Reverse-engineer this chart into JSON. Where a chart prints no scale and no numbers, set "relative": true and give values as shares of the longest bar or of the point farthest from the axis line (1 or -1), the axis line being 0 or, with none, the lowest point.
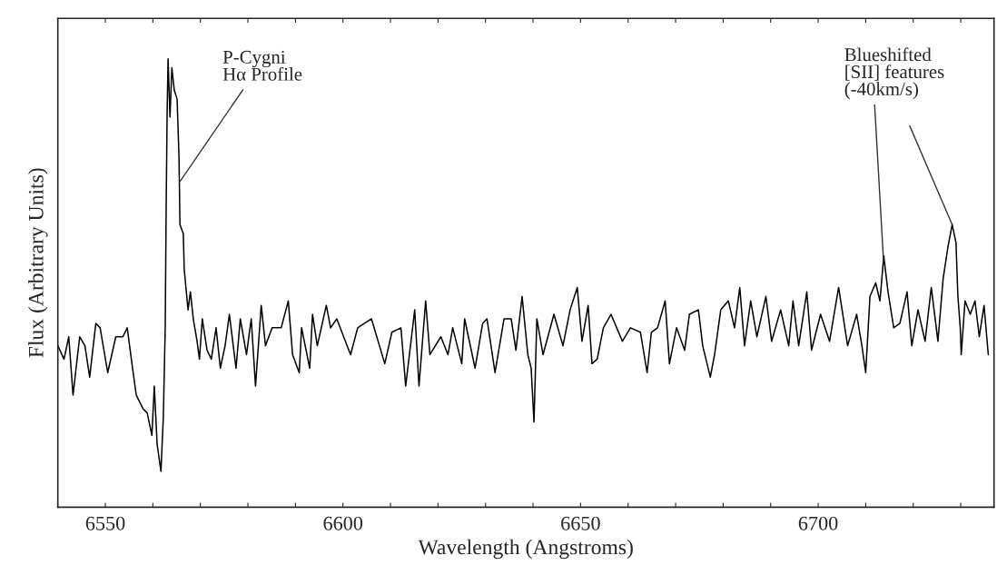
{
  "chart_data": {
    "type": "line",
    "relative": true,
    "xlabel": "Wavelength (Angstroms)",
    "ylabel": "Flux (Arbitrary Units)",
    "xlim": [
      6540,
      6737
    ],
    "xticks": [
      6550,
      {
        "value": 6560,
        "label": null
      },
      {
        "value": 6570,
        "label": null
      },
      {
        "value": 6580,
        "label": null
      },
      {
        "value": 6590,
        "label": null
      },
      6600,
      {
        "value": 6610,
        "label": null
      },
      {
        "value": 6620,
        "label": null
      },
      {
        "value": 6630,
        "label": null
      },
      {
        "value": 6640,
        "label": null
      },
      6650,
      {
        "value": 6660,
        "label": null
      },
      {
        "value": 6670,
        "label": null
      },
      {
        "value": 6680,
        "label": null
      },
      {
        "value": 6690,
        "label": null
      },
      6700,
      {
        "value": 6710,
        "label": null
      },
      {
        "value": 6720,
        "label": null
      },
      {
        "value": 6730,
        "label": null
      }
    ],
    "tick_labels": "x",
    "grid": false,
    "legend": false,
    "marker": "none",
    "line_style": "solid",
    "annotations": [
      {
        "text": "P-Cygni\nHα Profile",
        "x": 6565.3,
        "y": 0.72
      },
      {
        "text": "Blueshifted\n[SII] features\n(-40km/s)",
        "x": 6713.8,
        "y": 0.54
      }
    ],
    "series": [
      {
        "color": "#000000",
        "x": [
          6540.0,
          6541.3,
          6542.3,
          6543.2,
          6544.6,
          6545.7,
          6546.7,
          6548.0,
          6548.9,
          6550.5,
          6552.2,
          6553.7,
          6554.6,
          6555.6,
          6556.5,
          6557.9,
          6558.8,
          6559.8,
          6560.3,
          6560.9,
          6561.7,
          6562.2,
          6562.6,
          6562.8,
          6563.0,
          6563.2,
          6563.6,
          6564.0,
          6564.5,
          6565.1,
          6565.5,
          6565.7,
          6566.4,
          6566.6,
          6567.4,
          6567.9,
          6568.5,
          6569.3,
          6569.8,
          6570.4,
          6571.4,
          6572.3,
          6573.3,
          6574.2,
          6575.2,
          6576.1,
          6577.5,
          6578.4,
          6579.7,
          6580.7,
          6581.6,
          6582.8,
          6583.7,
          6585.1,
          6587.0,
          6588.5,
          6589.4,
          6590.8,
          6591.3,
          6593.0,
          6593.6,
          6594.6,
          6596.5,
          6597.4,
          6598.7,
          6601.6,
          6603.1,
          6606.0,
          6608.8,
          6610.3,
          6612.2,
          6613.2,
          6615.1,
          6616.0,
          6617.4,
          6618.3,
          6620.6,
          6622.1,
          6623.1,
          6625.0,
          6625.6,
          6627.8,
          6629.4,
          6630.3,
          6632.0,
          6633.9,
          6635.4,
          6636.4,
          6637.7,
          6638.9,
          6639.6,
          6640.2,
          6640.8,
          6642.1,
          6644.4,
          6646.3,
          6647.8,
          6649.3,
          6650.3,
          6651.6,
          6652.4,
          6653.5,
          6654.8,
          6656.4,
          6658.8,
          6660.5,
          6662.6,
          6664.0,
          6664.9,
          6666.2,
          6667.8,
          6668.7,
          6670.2,
          6671.9,
          6672.9,
          6674.8,
          6675.7,
          6677.3,
          6678.2,
          6679.5,
          6681.1,
          6682.4,
          6683.5,
          6684.5,
          6685.8,
          6687.1,
          6689.0,
          6690.2,
          6692.1,
          6693.8,
          6694.7,
          6695.9,
          6697.6,
          6698.6,
          6700.5,
          6702.4,
          6704.3,
          6706.2,
          6708.1,
          6709.2,
          6710.0,
          6710.9,
          6712.1,
          6713.0,
          6713.8,
          6714.7,
          6715.9,
          6717.2,
          6718.7,
          6719.7,
          6721.0,
          6722.5,
          6723.8,
          6725.2,
          6726.3,
          6727.3,
          6728.2,
          6729.0,
          6729.4,
          6729.9,
          6730.1,
          6730.9,
          6732.0,
          6733.0,
          6733.9,
          6734.9,
          6735.8
        ],
        "values": [
          0.36,
          0.33,
          0.38,
          0.25,
          0.38,
          0.36,
          0.29,
          0.41,
          0.4,
          0.3,
          0.38,
          0.38,
          0.4,
          0.32,
          0.25,
          0.22,
          0.21,
          0.16,
          0.27,
          0.14,
          0.08,
          0.2,
          0.4,
          0.67,
          0.88,
          1.0,
          0.87,
          0.98,
          0.93,
          0.91,
          0.78,
          0.63,
          0.61,
          0.53,
          0.44,
          0.48,
          0.42,
          0.37,
          0.33,
          0.42,
          0.35,
          0.33,
          0.4,
          0.31,
          0.36,
          0.43,
          0.31,
          0.42,
          0.34,
          0.42,
          0.27,
          0.45,
          0.36,
          0.4,
          0.4,
          0.46,
          0.34,
          0.3,
          0.4,
          0.31,
          0.43,
          0.36,
          0.45,
          0.4,
          0.42,
          0.34,
          0.4,
          0.42,
          0.32,
          0.39,
          0.4,
          0.27,
          0.44,
          0.27,
          0.46,
          0.34,
          0.38,
          0.34,
          0.4,
          0.32,
          0.42,
          0.31,
          0.41,
          0.42,
          0.3,
          0.42,
          0.42,
          0.35,
          0.47,
          0.34,
          0.31,
          0.19,
          0.42,
          0.34,
          0.43,
          0.36,
          0.44,
          0.49,
          0.37,
          0.45,
          0.32,
          0.33,
          0.4,
          0.43,
          0.37,
          0.4,
          0.39,
          0.3,
          0.39,
          0.4,
          0.46,
          0.32,
          0.4,
          0.35,
          0.43,
          0.44,
          0.36,
          0.29,
          0.34,
          0.44,
          0.46,
          0.4,
          0.49,
          0.36,
          0.46,
          0.38,
          0.47,
          0.37,
          0.44,
          0.36,
          0.46,
          0.36,
          0.48,
          0.35,
          0.43,
          0.37,
          0.49,
          0.36,
          0.43,
          0.36,
          0.3,
          0.47,
          0.5,
          0.46,
          0.56,
          0.48,
          0.4,
          0.41,
          0.48,
          0.36,
          0.44,
          0.37,
          0.49,
          0.37,
          0.51,
          0.58,
          0.63,
          0.59,
          0.47,
          0.4,
          0.34,
          0.46,
          0.43,
          0.46,
          0.38,
          0.45,
          0.34
        ]
      }
    ]
  }
}
